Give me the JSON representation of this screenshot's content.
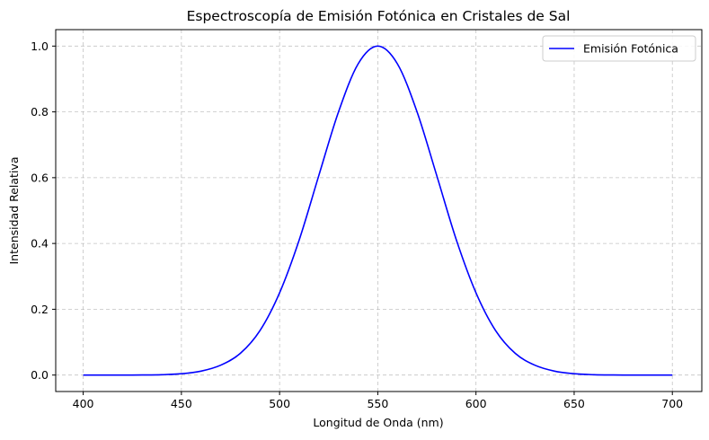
{
  "chart_data": {
    "type": "line",
    "title": "Espectroscopía de Emisión Fotónica en Cristales de Sal",
    "xlabel": "Longitud de Onda (nm)",
    "ylabel": "Intensidad Relativa",
    "xlim": [
      386,
      715
    ],
    "ylim": [
      -0.05,
      1.05
    ],
    "xticks": [
      400,
      450,
      500,
      550,
      600,
      650,
      700
    ],
    "yticks": [
      0.0,
      0.2,
      0.4,
      0.6,
      0.8,
      1.0
    ],
    "xtick_labels": [
      "400",
      "450",
      "500",
      "550",
      "600",
      "650",
      "700"
    ],
    "ytick_labels": [
      "0.0",
      "0.2",
      "0.4",
      "0.6",
      "0.8",
      "1.0"
    ],
    "grid": true,
    "legend_position": "top-right",
    "series": [
      {
        "name": "Emisión Fotónica",
        "color": "#0000ff",
        "x": [
          400,
          410,
          420,
          430,
          440,
          450,
          460,
          470,
          480,
          490,
          500,
          510,
          520,
          530,
          540,
          550,
          560,
          570,
          580,
          590,
          600,
          610,
          620,
          630,
          640,
          650,
          660,
          670,
          680,
          690,
          700
        ],
        "y": [
          0.0,
          0.0,
          0.0,
          0.0002,
          0.001,
          0.004,
          0.012,
          0.03,
          0.066,
          0.135,
          0.25,
          0.411,
          0.607,
          0.8,
          0.946,
          1.0,
          0.946,
          0.8,
          0.607,
          0.411,
          0.25,
          0.135,
          0.066,
          0.03,
          0.012,
          0.004,
          0.001,
          0.0002,
          0.0,
          0.0,
          0.0
        ]
      }
    ]
  }
}
